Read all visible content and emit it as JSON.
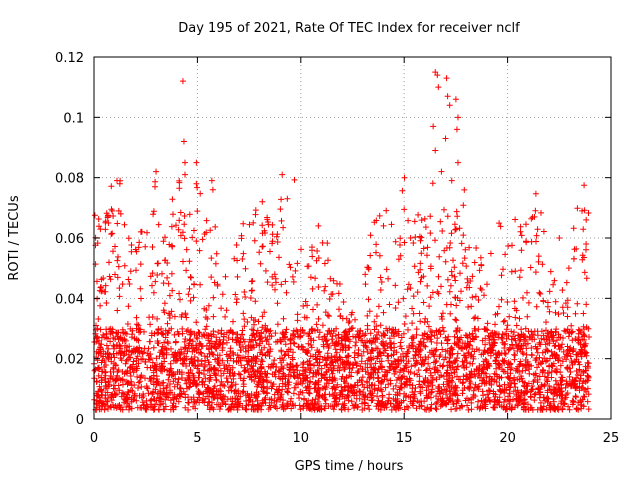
{
  "chart_data": {
    "type": "scatter",
    "title": "Day 195 of 2021, Rate Of TEC Index for receiver nclf",
    "xlabel": "GPS time / hours",
    "ylabel": "ROTI / TECUs",
    "xlim": [
      0,
      25
    ],
    "ylim": [
      0,
      0.12
    ],
    "x_ticks": [
      0,
      5,
      10,
      15,
      20,
      25
    ],
    "x_tick_labels": [
      "0",
      "5",
      "10",
      "15",
      "20",
      "25"
    ],
    "y_ticks": [
      0,
      0.02,
      0.04,
      0.06,
      0.08,
      0.1,
      0.12
    ],
    "y_tick_labels": [
      "0",
      "0.02",
      "0.04",
      "0.06",
      "0.08",
      "0.1",
      "0.12"
    ],
    "grid": true,
    "marker": "+",
    "color": "#ff0000",
    "x_range": [
      0,
      23.95
    ],
    "dense_band": [
      0.003,
      0.03
    ],
    "highlighted_points": [
      {
        "x": 4.3,
        "y": 0.112
      },
      {
        "x": 4.35,
        "y": 0.092
      },
      {
        "x": 4.4,
        "y": 0.085
      },
      {
        "x": 4.4,
        "y": 0.081
      },
      {
        "x": 4.95,
        "y": 0.085
      },
      {
        "x": 4.95,
        "y": 0.078
      },
      {
        "x": 5.7,
        "y": 0.079
      },
      {
        "x": 5.75,
        "y": 0.076
      },
      {
        "x": 3.0,
        "y": 0.082
      },
      {
        "x": 2.95,
        "y": 0.077
      },
      {
        "x": 1.25,
        "y": 0.078
      },
      {
        "x": 1.2,
        "y": 0.069
      },
      {
        "x": 9.1,
        "y": 0.081
      },
      {
        "x": 9.35,
        "y": 0.073
      },
      {
        "x": 16.5,
        "y": 0.115
      },
      {
        "x": 16.6,
        "y": 0.114
      },
      {
        "x": 17.05,
        "y": 0.113
      },
      {
        "x": 16.65,
        "y": 0.11
      },
      {
        "x": 17.1,
        "y": 0.107
      },
      {
        "x": 17.5,
        "y": 0.106
      },
      {
        "x": 17.2,
        "y": 0.104
      },
      {
        "x": 17.6,
        "y": 0.1
      },
      {
        "x": 16.4,
        "y": 0.097
      },
      {
        "x": 17.55,
        "y": 0.096
      },
      {
        "x": 17.0,
        "y": 0.093
      },
      {
        "x": 16.5,
        "y": 0.089
      },
      {
        "x": 17.6,
        "y": 0.085
      },
      {
        "x": 16.8,
        "y": 0.082
      },
      {
        "x": 17.3,
        "y": 0.079
      },
      {
        "x": 21.3,
        "y": 0.067
      },
      {
        "x": 23.6,
        "y": 0.069
      },
      {
        "x": 23.8,
        "y": 0.066
      },
      {
        "x": 7.7,
        "y": 0.065
      },
      {
        "x": 10.85,
        "y": 0.064
      },
      {
        "x": 14.0,
        "y": 0.064
      },
      {
        "x": 22.5,
        "y": 0.06
      }
    ]
  }
}
